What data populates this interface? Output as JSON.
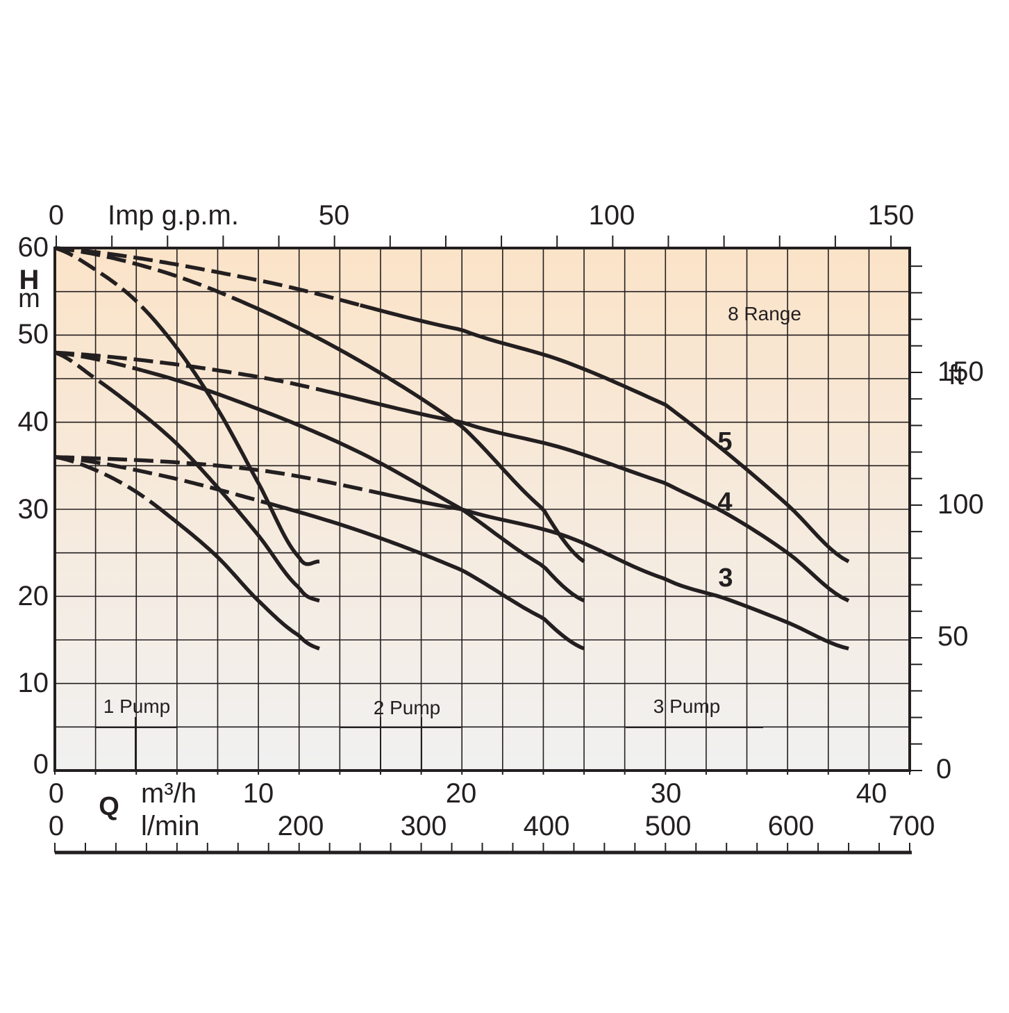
{
  "chart_data": {
    "type": "line",
    "top_axis": {
      "unit_label": "Imp g.p.m.",
      "ticks": [
        "0",
        "50",
        "100",
        "150"
      ]
    },
    "left_axis": {
      "label_main": "H",
      "label_unit": "m",
      "ticks": [
        "0",
        "10",
        "20",
        "30",
        "40",
        "50",
        "60"
      ],
      "range": [
        0,
        60
      ]
    },
    "right_axis": {
      "unit_label": "ft",
      "ticks": [
        "0",
        "50",
        "100",
        "150"
      ]
    },
    "bottom_axis_m3h": {
      "label_q": "Q",
      "unit_label": "m³/h",
      "ticks": [
        "0",
        "10",
        "20",
        "30",
        "40"
      ],
      "range": [
        0,
        42
      ]
    },
    "bottom_axis_lmin": {
      "unit_label": "l/min",
      "ticks": [
        "0",
        "200",
        "300",
        "400",
        "500",
        "600",
        "700"
      ]
    },
    "range_label": "8 Range",
    "curve_labels": [
      "5",
      "4",
      "3"
    ],
    "pump_labels": [
      "1 Pump",
      "2 Pump",
      "3 Pump"
    ],
    "grid": true,
    "background": {
      "top": "#fbe3c8",
      "bottom": "#f1f1f1"
    },
    "line_color": "#231f20",
    "series": [
      {
        "name": "5",
        "pumps": 1,
        "dashed_to_q": 4.3,
        "x": [
          0,
          2,
          4,
          6,
          8,
          10,
          12,
          13
        ],
        "y": [
          60,
          57.5,
          53.9,
          48.5,
          41.5,
          33,
          24.5,
          24
        ]
      },
      {
        "name": "4",
        "pumps": 1,
        "dashed_to_q": 2.2,
        "x": [
          0,
          2,
          4,
          6,
          8,
          10,
          12,
          13
        ],
        "y": [
          48,
          45,
          41.5,
          37.5,
          32.5,
          27,
          21,
          19.5
        ]
      },
      {
        "name": "3",
        "pumps": 1,
        "dashed_to_q": 5.2,
        "x": [
          0,
          2,
          4,
          6,
          8,
          10,
          12,
          13
        ],
        "y": [
          36,
          34.5,
          32,
          28.5,
          24.5,
          19.5,
          15.5,
          14
        ]
      },
      {
        "name": "5",
        "pumps": 2,
        "dashed_to_q": 8.7,
        "x": [
          0,
          5,
          10,
          15,
          20,
          24,
          26
        ],
        "y": [
          60,
          57.5,
          53,
          47,
          39.5,
          30,
          24
        ]
      },
      {
        "name": "4",
        "pumps": 2,
        "dashed_to_q": 4.3,
        "x": [
          0,
          5,
          10,
          15,
          20,
          24,
          26
        ],
        "y": [
          48,
          45.5,
          41.5,
          36.5,
          30,
          23.5,
          19.5
        ]
      },
      {
        "name": "3",
        "pumps": 2,
        "dashed_to_q": 10.4,
        "x": [
          0,
          5,
          10,
          15,
          20,
          24,
          26
        ],
        "y": [
          36,
          34,
          31,
          27.5,
          23,
          17.5,
          14
        ]
      },
      {
        "name": "5",
        "pumps": 3,
        "dashed_to_q": 15,
        "x": [
          0,
          10,
          20,
          25,
          30,
          33,
          36,
          39
        ],
        "y": [
          60,
          56.3,
          50.6,
          47,
          42,
          36.5,
          30.5,
          24
        ]
      },
      {
        "name": "4",
        "pumps": 3,
        "dashed_to_q": 13,
        "x": [
          0,
          10,
          20,
          25,
          30,
          33,
          36,
          39
        ],
        "y": [
          48,
          45.2,
          40,
          37,
          33,
          29.5,
          25,
          19.5
        ]
      },
      {
        "name": "3",
        "pumps": 3,
        "dashed_to_q": 15.5,
        "x": [
          0,
          10,
          20,
          25,
          30,
          33,
          36,
          39
        ],
        "y": [
          36,
          34.5,
          30,
          27,
          22,
          19.7,
          17,
          14
        ]
      }
    ]
  }
}
